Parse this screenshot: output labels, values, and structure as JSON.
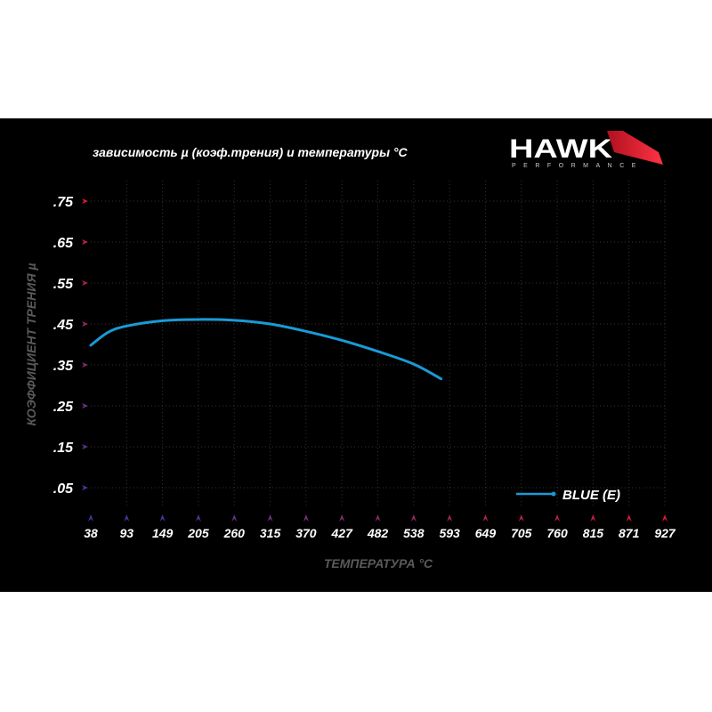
{
  "chart_data": {
    "type": "line",
    "title": "зависимость µ (коэф.трения) и температуры °C",
    "xlabel": "ТЕМПЕРАТУРА °C",
    "ylabel": "КОЭФФИЦИЕНТ ТРЕНИЯ µ",
    "x_ticks": [
      38,
      93,
      149,
      205,
      260,
      315,
      370,
      427,
      482,
      538,
      593,
      649,
      705,
      760,
      815,
      871,
      927
    ],
    "y_ticks": [
      0.05,
      0.15,
      0.25,
      0.35,
      0.45,
      0.55,
      0.65,
      0.75
    ],
    "y_tick_labels": [
      ".05",
      ".15",
      ".25",
      ".35",
      ".45",
      ".55",
      ".65",
      ".75"
    ],
    "xlim": [
      38,
      927
    ],
    "ylim": [
      0,
      0.8
    ],
    "grid": true,
    "legend_position": "bottom-right",
    "series": [
      {
        "name": "BLUE (E)",
        "color": "#1a9ad6",
        "x": [
          38,
          65,
          93,
          149,
          205,
          260,
          315,
          370,
          427,
          482,
          538,
          580
        ],
        "y": [
          0.398,
          0.43,
          0.445,
          0.458,
          0.461,
          0.459,
          0.45,
          0.432,
          0.41,
          0.383,
          0.352,
          0.316
        ]
      }
    ]
  },
  "brand": {
    "name": "HAWK",
    "sub": "PERFORMANCE"
  },
  "colors": {
    "background": "#000000",
    "axis_top": "#e0192e",
    "axis_bottom": "#3b3aa8",
    "tick_label": "#ffffff",
    "axis_title": "#5a5a5a"
  }
}
